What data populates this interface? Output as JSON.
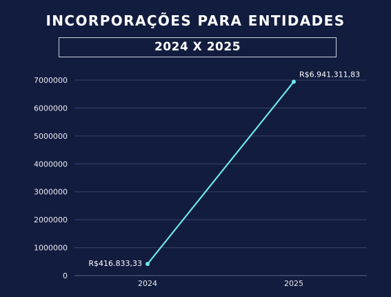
{
  "header": {
    "title": "INCORPORAÇÕES PARA ENTIDADES",
    "subtitle": "2024 X 2025"
  },
  "colors": {
    "background": "#121c3e",
    "line": "#6ee6ee",
    "grid": "#3a4468",
    "text": "#ffffff"
  },
  "chart_data": {
    "type": "line",
    "title": "INCORPORAÇÕES PARA ENTIDADES",
    "subtitle": "2024 X 2025",
    "categories": [
      "2024",
      "2025"
    ],
    "series": [
      {
        "values": [
          416833.33,
          6941311.83
        ]
      }
    ],
    "data_labels": [
      "R$416.833,33",
      "R$6.941.311,83"
    ],
    "yticks": [
      0,
      1000000,
      2000000,
      3000000,
      4000000,
      5000000,
      6000000,
      7000000
    ],
    "ytick_labels": [
      "0",
      "1000000",
      "2000000",
      "3000000",
      "4000000",
      "5000000",
      "6000000",
      "7000000"
    ],
    "ylim": [
      0,
      7000000
    ],
    "grid": true,
    "legend": "none"
  }
}
